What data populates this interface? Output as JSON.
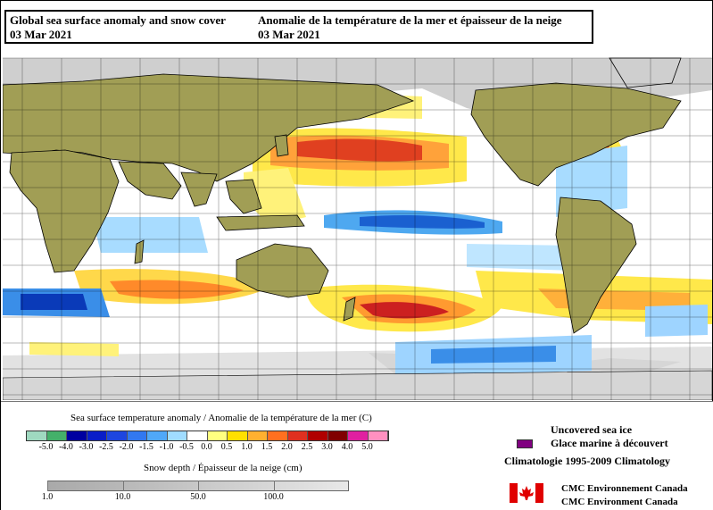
{
  "title": {
    "en_line1": "Global sea surface anomaly and snow cover",
    "fr_line1": "Anomalie de la température de la mer et épaisseur de la neige",
    "date": "03 Mar 2021"
  },
  "legend": {
    "sst_title": "Sea surface temperature anomaly / Anomalie de la température de la mer (C)",
    "sst_scale": {
      "labels": [
        "-5.0",
        "-4.0",
        "-3.0",
        "-2.5",
        "-2.0",
        "-1.5",
        "-1.0",
        "-0.5",
        "0.0",
        "0.5",
        "1.0",
        "1.5",
        "2.0",
        "2.5",
        "3.0",
        "4.0",
        "5.0"
      ],
      "colors": [
        "#9fd9c0",
        "#44b06a",
        "#0000a0",
        "#0a1ec8",
        "#1e46e0",
        "#3278f0",
        "#50a8f8",
        "#a0dcff",
        "#ffffff",
        "#ffff80",
        "#ffe000",
        "#ffb030",
        "#ff7020",
        "#e03020",
        "#b00000",
        "#800000",
        "#e020a0",
        "#ff90c0"
      ]
    },
    "snow_title": "Snow depth / Épaisseur de la neige (cm)",
    "snow_scale": {
      "labels": [
        "1.0",
        "10.0",
        "50.0",
        "100.0"
      ],
      "positions": [
        0,
        0.25,
        0.5,
        0.75
      ]
    },
    "ice_en": "Uncovered sea ice",
    "ice_fr": "Glace marine à découvert",
    "ice_color": "#800080",
    "climatology": "Climatologie 1995-2009 Climatology"
  },
  "credit": {
    "line1": "CMC Environnement Canada",
    "line2": "CMC Environment Canada"
  },
  "colors": {
    "land": "#a19e55",
    "snow": "#cfcfcf",
    "ocean": "#ffffff"
  }
}
